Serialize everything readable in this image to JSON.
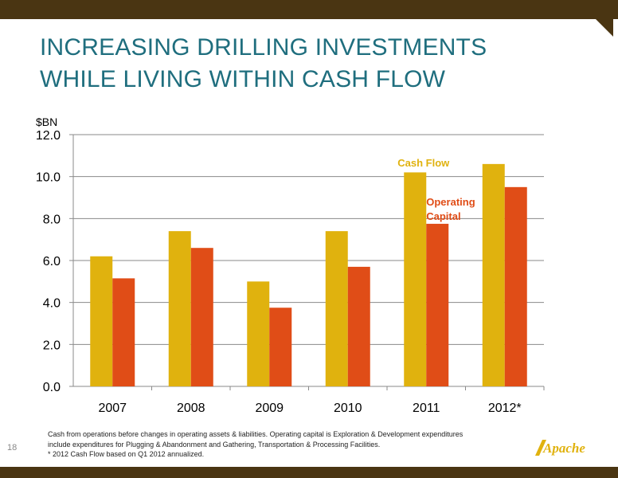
{
  "slide": {
    "title_line1": "INCREASING DRILLING INVESTMENTS",
    "title_line2": "WHILE LIVING WITHIN CASH FLOW",
    "page_number": "18",
    "footnote_line1": "Cash from operations before changes in operating assets & liabilities. Operating capital is Exploration & Development expenditures",
    "footnote_line2": "include expenditures for Plugging & Abandonment and Gathering, Transportation & Processing Facilities.",
    "footnote_line3": "* 2012 Cash Flow based on Q1 2012 annualized.",
    "logo_text": "Apache",
    "colors": {
      "title": "#1f6e7e",
      "bars_dark": "#4a3512"
    }
  },
  "chart_data": {
    "type": "bar",
    "title": "",
    "ylabel": "$BN",
    "xlabel": "",
    "ylim": [
      0,
      12
    ],
    "yticks": [
      "0.0",
      "2.0",
      "4.0",
      "6.0",
      "8.0",
      "10.0",
      "12.0"
    ],
    "categories": [
      "2007",
      "2008",
      "2009",
      "2010",
      "2011",
      "2012*"
    ],
    "grid": true,
    "legend": "inline labels above 2011 bars",
    "series": [
      {
        "name": "Cash Flow",
        "color": "#e0b20e",
        "values": [
          6.2,
          7.4,
          5.0,
          7.4,
          10.2,
          10.6
        ]
      },
      {
        "name": "Operating Capital",
        "label_lines": [
          "Operating",
          "Capital"
        ],
        "color": "#e04d17",
        "values": [
          5.15,
          6.6,
          3.75,
          5.7,
          7.75,
          9.5
        ]
      }
    ]
  }
}
